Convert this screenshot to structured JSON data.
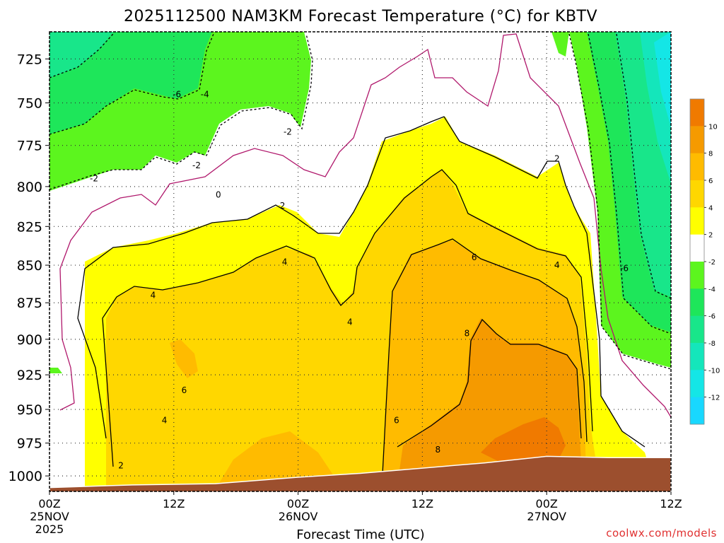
{
  "chart_data": {
    "type": "heatmap",
    "title": "2025112500 NAM3KM Forecast Temperature (°C) for KBTV",
    "xlabel": "Forecast Time (UTC)",
    "ylabel": "",
    "x_ticks": [
      {
        "hour": 0,
        "label": "00Z",
        "sub": "25NOV",
        "sub2": "2025"
      },
      {
        "hour": 12,
        "label": "12Z",
        "sub": "",
        "sub2": ""
      },
      {
        "hour": 24,
        "label": "00Z",
        "sub": "26NOV",
        "sub2": ""
      },
      {
        "hour": 36,
        "label": "12Z",
        "sub": "",
        "sub2": ""
      },
      {
        "hour": 48,
        "label": "00Z",
        "sub": "27NOV",
        "sub2": ""
      },
      {
        "hour": 60,
        "label": "12Z",
        "sub": "",
        "sub2": ""
      }
    ],
    "xlim": [
      0,
      60
    ],
    "y_ticks": [
      725,
      750,
      775,
      800,
      825,
      850,
      875,
      900,
      925,
      950,
      975,
      1000
    ],
    "ylim": [
      1012,
      710
    ],
    "y_log": true,
    "grid": true,
    "colorbar": {
      "labels": [
        "10",
        "8",
        "6",
        "4",
        "2",
        "-2",
        "-4",
        "-6",
        "-8",
        "-10",
        "-12"
      ],
      "colors": [
        "#f07a00",
        "#f59a00",
        "#ffbb00",
        "#ffd700",
        "#ffff00",
        "#ffffff",
        "#5cf51e",
        "#1ee65a",
        "#18e68a",
        "#14e6bb",
        "#14e6e6",
        "#18d8ff"
      ]
    },
    "contour_labels": [
      {
        "hour": 12.3,
        "p": 745,
        "text": "-6"
      },
      {
        "hour": 15.0,
        "p": 745,
        "text": "-4"
      },
      {
        "hour": 23.0,
        "p": 767,
        "text": "-2"
      },
      {
        "hour": 4.3,
        "p": 795,
        "text": "-2"
      },
      {
        "hour": 14.2,
        "p": 787,
        "text": "-2"
      },
      {
        "hour": 16.3,
        "p": 805,
        "text": "0"
      },
      {
        "hour": 22.5,
        "p": 812,
        "text": "2"
      },
      {
        "hour": 49.0,
        "p": 783,
        "text": "2"
      },
      {
        "hour": 22.7,
        "p": 848,
        "text": "4"
      },
      {
        "hour": 10.0,
        "p": 870,
        "text": "4"
      },
      {
        "hour": 29.0,
        "p": 888,
        "text": "4"
      },
      {
        "hour": 49.0,
        "p": 850,
        "text": "4"
      },
      {
        "hour": 41.0,
        "p": 845,
        "text": "6"
      },
      {
        "hour": 13.0,
        "p": 936,
        "text": "6"
      },
      {
        "hour": 33.5,
        "p": 958,
        "text": "6"
      },
      {
        "hour": 11.1,
        "p": 958,
        "text": "4"
      },
      {
        "hour": 6.9,
        "p": 992,
        "text": "2"
      },
      {
        "hour": 40.3,
        "p": 896,
        "text": "8"
      },
      {
        "hour": 37.5,
        "p": 980,
        "text": "8"
      },
      {
        "hour": 55.5,
        "p": 852,
        "text": "-6"
      }
    ],
    "terrain_surface_hpa": [
      {
        "hour": 0,
        "p": 1009
      },
      {
        "hour": 8,
        "p": 1007
      },
      {
        "hour": 16,
        "p": 1006
      },
      {
        "hour": 24,
        "p": 1001
      },
      {
        "hour": 30,
        "p": 998
      },
      {
        "hour": 36,
        "p": 994
      },
      {
        "hour": 42,
        "p": 990
      },
      {
        "hour": 48,
        "p": 985
      },
      {
        "hour": 54,
        "p": 986
      },
      {
        "hour": 60,
        "p": 986
      }
    ],
    "credit": "coolwx.com/models"
  }
}
